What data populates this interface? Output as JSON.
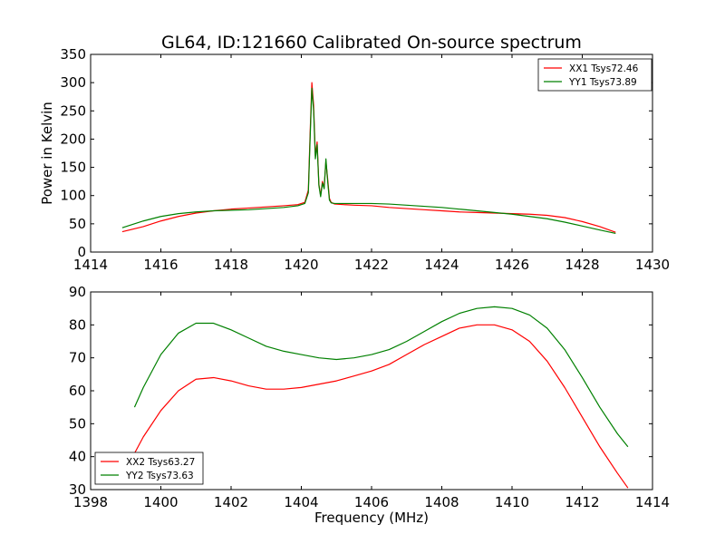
{
  "figure": {
    "title": "GL64, ID:121660 Calibrated On-source spectrum"
  },
  "chart_data": [
    {
      "type": "line",
      "title": "GL64, ID:121660 Calibrated On-source spectrum",
      "xlabel": "",
      "ylabel": "Power in Kelvin",
      "xlim": [
        1414,
        1430
      ],
      "ylim": [
        0,
        350
      ],
      "xticks": [
        1414,
        1416,
        1418,
        1420,
        1422,
        1424,
        1426,
        1428,
        1430
      ],
      "yticks": [
        0,
        50,
        100,
        150,
        200,
        250,
        300,
        350
      ],
      "legend_position": "top-right",
      "grid": false,
      "series": [
        {
          "name": "XX1 Tsys72.46",
          "color": "#ff0000",
          "x": [
            1414.9,
            1415.5,
            1416.0,
            1416.5,
            1417.0,
            1417.5,
            1418.0,
            1418.5,
            1419.0,
            1419.5,
            1419.9,
            1420.1,
            1420.2,
            1420.25,
            1420.3,
            1420.35,
            1420.4,
            1420.45,
            1420.5,
            1420.55,
            1420.6,
            1420.65,
            1420.7,
            1420.75,
            1420.8,
            1420.85,
            1420.95,
            1421.2,
            1421.5,
            1422.0,
            1422.5,
            1423.0,
            1423.5,
            1424.0,
            1424.5,
            1425.0,
            1425.5,
            1426.0,
            1426.5,
            1427.0,
            1427.5,
            1428.0,
            1428.5,
            1428.95
          ],
          "y": [
            36,
            45,
            55,
            63,
            69,
            73,
            76,
            78,
            80,
            82,
            84,
            88,
            110,
            210,
            300,
            260,
            170,
            195,
            120,
            100,
            125,
            115,
            160,
            130,
            95,
            88,
            85,
            84,
            83,
            82,
            79,
            77,
            75,
            73,
            71,
            70,
            69,
            68,
            67,
            65,
            61,
            54,
            45,
            35
          ]
        },
        {
          "name": "YY1 Tsys73.89",
          "color": "#008000",
          "x": [
            1414.9,
            1415.5,
            1416.0,
            1416.5,
            1417.0,
            1417.5,
            1418.0,
            1418.5,
            1419.0,
            1419.5,
            1419.9,
            1420.1,
            1420.2,
            1420.25,
            1420.3,
            1420.35,
            1420.4,
            1420.45,
            1420.5,
            1420.55,
            1420.6,
            1420.65,
            1420.7,
            1420.75,
            1420.8,
            1420.85,
            1420.95,
            1421.2,
            1421.5,
            1422.0,
            1422.5,
            1423.0,
            1423.5,
            1424.0,
            1424.5,
            1425.0,
            1425.5,
            1426.0,
            1426.5,
            1427.0,
            1427.5,
            1428.0,
            1428.5,
            1428.95
          ],
          "y": [
            43,
            55,
            63,
            68,
            71,
            73,
            74,
            75,
            77,
            79,
            82,
            86,
            105,
            200,
            290,
            250,
            165,
            190,
            118,
            98,
            122,
            112,
            165,
            125,
            92,
            87,
            86,
            86,
            86,
            86,
            85,
            83,
            81,
            79,
            76,
            73,
            70,
            67,
            63,
            59,
            53,
            46,
            39,
            33
          ]
        }
      ]
    },
    {
      "type": "line",
      "title": "",
      "xlabel": "Frequency (MHz)",
      "ylabel": "",
      "xlim": [
        1398,
        1414
      ],
      "ylim": [
        30,
        90
      ],
      "xticks": [
        1398,
        1400,
        1402,
        1404,
        1406,
        1408,
        1410,
        1412,
        1414
      ],
      "yticks": [
        30,
        40,
        50,
        60,
        70,
        80,
        90
      ],
      "legend_position": "bottom-left",
      "grid": false,
      "series": [
        {
          "name": "XX2 Tsys63.27",
          "color": "#ff0000",
          "x": [
            1399.25,
            1399.5,
            1400.0,
            1400.5,
            1401.0,
            1401.5,
            1402.0,
            1402.5,
            1403.0,
            1403.5,
            1404.0,
            1404.5,
            1405.0,
            1405.5,
            1406.0,
            1406.5,
            1407.0,
            1407.5,
            1408.0,
            1408.5,
            1409.0,
            1409.5,
            1410.0,
            1410.5,
            1411.0,
            1411.5,
            1412.0,
            1412.5,
            1413.0,
            1413.3
          ],
          "y": [
            41,
            46,
            54,
            60,
            63.5,
            64,
            63,
            61.5,
            60.5,
            60.5,
            61,
            62,
            63,
            64.5,
            66,
            68,
            71,
            74,
            76.5,
            79,
            80,
            80,
            78.5,
            75,
            69,
            61,
            52,
            43,
            35,
            30.5
          ]
        },
        {
          "name": "YY2 Tsys73.63",
          "color": "#008000",
          "x": [
            1399.25,
            1399.5,
            1400.0,
            1400.5,
            1401.0,
            1401.5,
            1402.0,
            1402.5,
            1403.0,
            1403.5,
            1404.0,
            1404.5,
            1405.0,
            1405.5,
            1406.0,
            1406.5,
            1407.0,
            1407.5,
            1408.0,
            1408.5,
            1409.0,
            1409.5,
            1410.0,
            1410.5,
            1411.0,
            1411.5,
            1412.0,
            1412.5,
            1413.0,
            1413.3
          ],
          "y": [
            55,
            61,
            71,
            77.5,
            80.5,
            80.5,
            78.5,
            76,
            73.5,
            72,
            71,
            70,
            69.5,
            70,
            71,
            72.5,
            75,
            78,
            81,
            83.5,
            85,
            85.5,
            85,
            83,
            79,
            72.5,
            64,
            55,
            47,
            43
          ]
        }
      ]
    }
  ]
}
